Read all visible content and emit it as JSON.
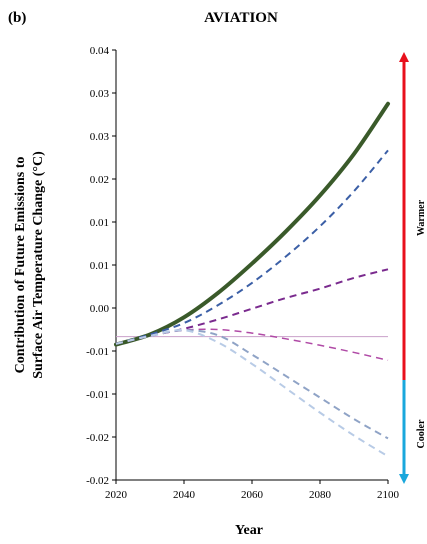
{
  "chart_data": {
    "type": "line",
    "panel_label": "(b)",
    "title": "AVIATION",
    "xlabel": "Year",
    "ylabel_line1": "Contribution of Future Emissions to",
    "ylabel_line2": "Surface Air Temperature Change (°C)",
    "x_ticks": [
      "2020",
      "2040",
      "2060",
      "2080",
      "2100"
    ],
    "y_ticks": [
      "0.04",
      "0.03",
      "0.03",
      "0.02",
      "0.01",
      "0.01",
      "0.00",
      "-0.01",
      "-0.01",
      "-0.02",
      "-0.02"
    ],
    "xlim": [
      2020,
      2100
    ],
    "ylim": [
      -0.02,
      0.04
    ],
    "grid": false,
    "side_labels": {
      "warmer": "Warmer",
      "cooler": "Cooler"
    },
    "colors": {
      "warmer_arrow": "#e8101c",
      "cooler_arrow": "#1aa7dc",
      "zero_line": "#c9a0c9"
    },
    "series": [
      {
        "style": "solid",
        "color": "#3a5a2a",
        "width": 4,
        "x": [
          2020,
          2030,
          2040,
          2050,
          2060,
          2070,
          2080,
          2090,
          2100
        ],
        "y": [
          -0.0011,
          0.0003,
          0.0027,
          0.0061,
          0.0102,
          0.0147,
          0.0197,
          0.0255,
          0.0325
        ]
      },
      {
        "style": "dashed",
        "color": "#3b5fa6",
        "width": 2,
        "x": [
          2020,
          2030,
          2040,
          2050,
          2060,
          2070,
          2080,
          2090,
          2100
        ],
        "y": [
          -0.001,
          0.0003,
          0.0019,
          0.0044,
          0.0075,
          0.0112,
          0.0154,
          0.0203,
          0.026
        ]
      },
      {
        "style": "dashed",
        "color": "#7a2a8e",
        "width": 2,
        "x": [
          2020,
          2030,
          2040,
          2050,
          2060,
          2070,
          2080,
          2090,
          2100
        ],
        "y": [
          -0.001,
          0.0001,
          0.0011,
          0.0024,
          0.0039,
          0.0054,
          0.0067,
          0.0082,
          0.0094
        ]
      },
      {
        "style": "dashed",
        "color": "#b04aa6",
        "width": 1.5,
        "x": [
          2020,
          2030,
          2040,
          2050,
          2060,
          2070,
          2080,
          2090,
          2100
        ],
        "y": [
          -0.001,
          0.0001,
          0.0009,
          0.001,
          0.0005,
          -0.0003,
          -0.0012,
          -0.0022,
          -0.0033
        ]
      },
      {
        "style": "dashed",
        "color": "#8fa3c6",
        "width": 2,
        "x": [
          2020,
          2030,
          2040,
          2050,
          2060,
          2070,
          2080,
          2090,
          2100
        ],
        "y": [
          -0.001,
          0.0001,
          0.0009,
          0.0002,
          -0.0025,
          -0.0055,
          -0.0085,
          -0.0115,
          -0.0142
        ]
      },
      {
        "style": "dashed",
        "color": "#b8cbe6",
        "width": 2,
        "x": [
          2020,
          2030,
          2040,
          2050,
          2060,
          2070,
          2080,
          2090,
          2100
        ],
        "y": [
          -0.001,
          0.0001,
          0.0009,
          -0.0008,
          -0.0038,
          -0.0072,
          -0.0106,
          -0.0138,
          -0.0167
        ]
      }
    ]
  }
}
